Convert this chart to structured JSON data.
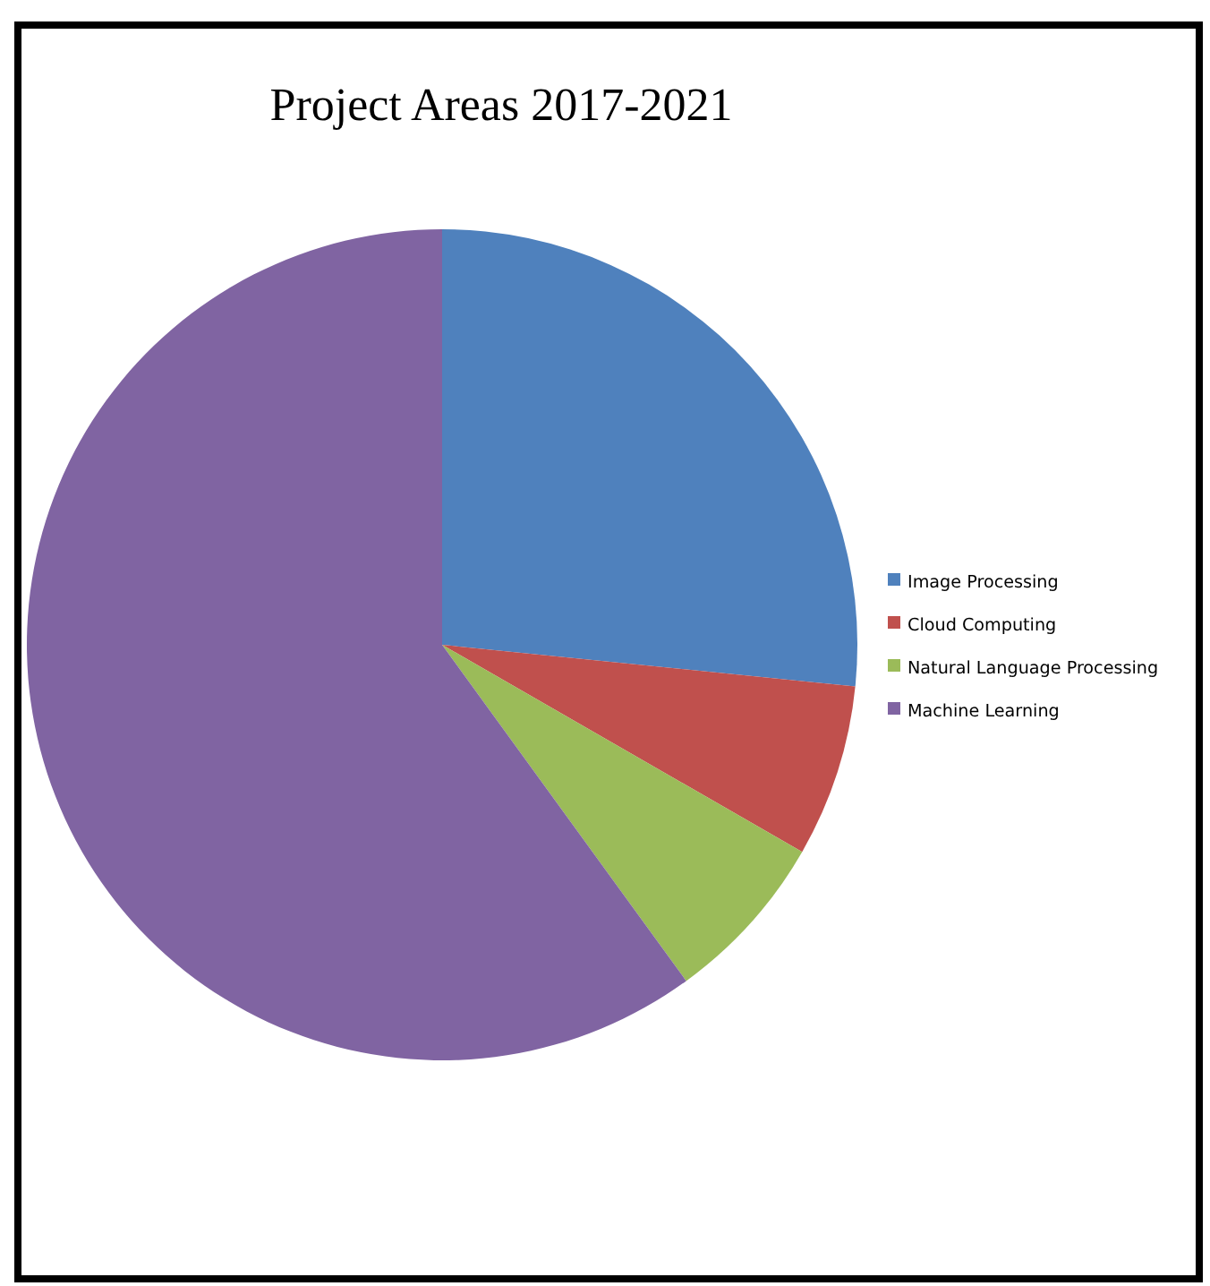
{
  "chart_data": {
    "type": "pie",
    "title": "Project Areas 2017-2021",
    "categories": [
      "Image Processing",
      "Cloud Computing",
      "Natural Language Processing",
      "Machine Learning"
    ],
    "values": [
      26.6,
      6.7,
      6.7,
      60
    ],
    "colors": [
      "#4f81bd",
      "#c0504d",
      "#9bbb59",
      "#8064a2"
    ],
    "legend": "right"
  }
}
